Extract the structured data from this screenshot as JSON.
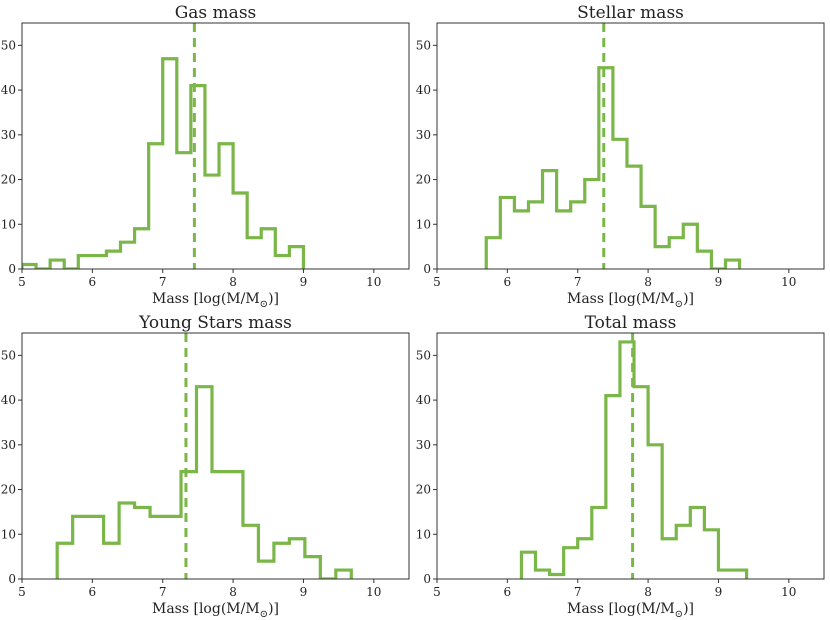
{
  "figure": {
    "xlabel_prefix": "Mass [log(M/M",
    "xlabel_sub": "⊙",
    "xlabel_suffix": ")]"
  },
  "colors": {
    "hist": "#7ab648",
    "axis": "#333333"
  },
  "chart_data": [
    {
      "type": "histogram",
      "title": "Gas mass",
      "xlabel": "Mass [log(M/M⊙)]",
      "xlim": [
        5,
        10.5
      ],
      "ylim": [
        0,
        55
      ],
      "xticks": [
        5,
        6,
        7,
        8,
        9,
        10
      ],
      "yticks": [
        0,
        10,
        20,
        30,
        40,
        50
      ],
      "bin_width": 0.2,
      "bins": [
        [
          5.0,
          1
        ],
        [
          5.2,
          0
        ],
        [
          5.4,
          2
        ],
        [
          5.6,
          0
        ],
        [
          5.8,
          3
        ],
        [
          6.0,
          3
        ],
        [
          6.2,
          4
        ],
        [
          6.4,
          6
        ],
        [
          6.6,
          9
        ],
        [
          6.8,
          28
        ],
        [
          7.0,
          47
        ],
        [
          7.2,
          26
        ],
        [
          7.4,
          41
        ],
        [
          7.6,
          21
        ],
        [
          7.8,
          28
        ],
        [
          8.0,
          17
        ],
        [
          8.2,
          7
        ],
        [
          8.4,
          9
        ],
        [
          8.6,
          3
        ],
        [
          8.8,
          5
        ]
      ],
      "median": 7.45
    },
    {
      "type": "histogram",
      "title": "Stellar mass",
      "xlabel": "Mass [log(M/M⊙)]",
      "xlim": [
        5,
        10.5
      ],
      "ylim": [
        0,
        55
      ],
      "xticks": [
        5,
        6,
        7,
        8,
        9,
        10
      ],
      "yticks": [
        0,
        10,
        20,
        30,
        40,
        50
      ],
      "bin_width": 0.2,
      "bins": [
        [
          5.7,
          7
        ],
        [
          5.9,
          16
        ],
        [
          6.1,
          13
        ],
        [
          6.3,
          15
        ],
        [
          6.5,
          22
        ],
        [
          6.7,
          13
        ],
        [
          6.9,
          15
        ],
        [
          7.1,
          20
        ],
        [
          7.3,
          45
        ],
        [
          7.5,
          29
        ],
        [
          7.7,
          23
        ],
        [
          7.9,
          14
        ],
        [
          8.1,
          5
        ],
        [
          8.3,
          7
        ],
        [
          8.5,
          10
        ],
        [
          8.7,
          4
        ],
        [
          8.9,
          0
        ],
        [
          9.1,
          2
        ]
      ],
      "median": 7.37
    },
    {
      "type": "histogram",
      "title": "Young Stars mass",
      "xlabel": "Mass [log(M/M⊙)]",
      "xlim": [
        5,
        10.5
      ],
      "ylim": [
        0,
        55
      ],
      "xticks": [
        5,
        6,
        7,
        8,
        9,
        10
      ],
      "yticks": [
        0,
        10,
        20,
        30,
        40,
        50
      ],
      "bin_width": 0.22,
      "bins": [
        [
          5.5,
          8
        ],
        [
          5.72,
          14
        ],
        [
          5.94,
          14
        ],
        [
          6.16,
          8
        ],
        [
          6.38,
          17
        ],
        [
          6.6,
          16
        ],
        [
          6.82,
          14
        ],
        [
          7.04,
          14
        ],
        [
          7.26,
          24
        ],
        [
          7.48,
          43
        ],
        [
          7.7,
          24
        ],
        [
          7.92,
          24
        ],
        [
          8.14,
          12
        ],
        [
          8.36,
          4
        ],
        [
          8.58,
          8
        ],
        [
          8.8,
          9
        ],
        [
          9.02,
          5
        ],
        [
          9.24,
          0
        ],
        [
          9.46,
          2
        ]
      ],
      "median": 7.33
    },
    {
      "type": "histogram",
      "title": "Total mass",
      "xlabel": "Mass [log(M/M⊙)]",
      "xlim": [
        5,
        10.5
      ],
      "ylim": [
        0,
        55
      ],
      "xticks": [
        5,
        6,
        7,
        8,
        9,
        10
      ],
      "yticks": [
        0,
        10,
        20,
        30,
        40,
        50
      ],
      "bin_width": 0.2,
      "bins": [
        [
          6.2,
          6
        ],
        [
          6.4,
          2
        ],
        [
          6.6,
          1
        ],
        [
          6.8,
          7
        ],
        [
          7.0,
          9
        ],
        [
          7.2,
          16
        ],
        [
          7.4,
          41
        ],
        [
          7.6,
          53
        ],
        [
          7.8,
          43
        ],
        [
          8.0,
          30
        ],
        [
          8.2,
          9
        ],
        [
          8.4,
          12
        ],
        [
          8.6,
          16
        ],
        [
          8.8,
          11
        ],
        [
          9.0,
          2
        ],
        [
          9.2,
          2
        ]
      ],
      "median": 7.78
    }
  ]
}
